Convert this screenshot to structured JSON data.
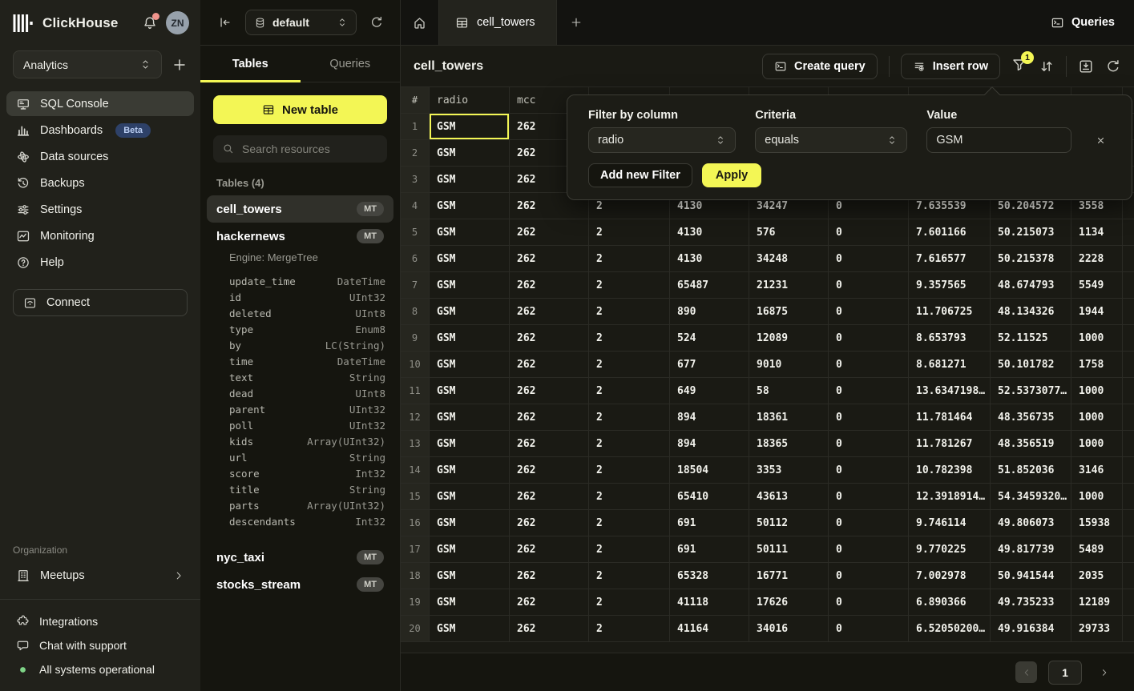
{
  "colors": {
    "accent_yellow": "#f3f655",
    "beta_badge_bg": "#2e4168",
    "beta_badge_text": "#b9cdf2",
    "status_green": "#7ed487",
    "notification_red": "#f0948c",
    "selected_cell_border": "#f3f655"
  },
  "sidebar": {
    "brand": "ClickHouse",
    "avatar_initials": "ZN",
    "workspace_selected": "Analytics",
    "nav": [
      {
        "label": "SQL Console",
        "icon": "console-icon",
        "active": true
      },
      {
        "label": "Dashboards",
        "icon": "dashboards-icon",
        "badge": "Beta"
      },
      {
        "label": "Data sources",
        "icon": "data-sources-icon"
      },
      {
        "label": "Backups",
        "icon": "backups-icon"
      },
      {
        "label": "Settings",
        "icon": "settings-icon"
      },
      {
        "label": "Monitoring",
        "icon": "monitoring-icon"
      },
      {
        "label": "Help",
        "icon": "help-icon"
      }
    ],
    "connect_label": "Connect",
    "organization_label": "Organization",
    "organization_items": [
      {
        "label": "Meetups",
        "icon": "building-icon"
      }
    ],
    "footer_items": [
      {
        "label": "Integrations",
        "icon": "puzzle-icon"
      },
      {
        "label": "Chat with support",
        "icon": "chat-icon"
      },
      {
        "label": "All systems operational",
        "icon": "status-dot"
      }
    ]
  },
  "explorer": {
    "database_selected": "default",
    "tabs": [
      {
        "label": "Tables",
        "active": true
      },
      {
        "label": "Queries",
        "active": false
      }
    ],
    "new_table_label": "New table",
    "search_placeholder": "Search resources",
    "section_label": "Tables (4)",
    "tables": [
      {
        "name": "cell_towers",
        "badge": "MT",
        "selected": true
      },
      {
        "name": "hackernews",
        "badge": "MT",
        "engine_label": "Engine: MergeTree",
        "columns": [
          {
            "name": "update_time",
            "type": "DateTime"
          },
          {
            "name": "id",
            "type": "UInt32"
          },
          {
            "name": "deleted",
            "type": "UInt8"
          },
          {
            "name": "type",
            "type": "Enum8"
          },
          {
            "name": "by",
            "type": "LC(String)"
          },
          {
            "name": "time",
            "type": "DateTime"
          },
          {
            "name": "text",
            "type": "String"
          },
          {
            "name": "dead",
            "type": "UInt8"
          },
          {
            "name": "parent",
            "type": "UInt32"
          },
          {
            "name": "poll",
            "type": "UInt32"
          },
          {
            "name": "kids",
            "type": "Array(UInt32)"
          },
          {
            "name": "url",
            "type": "String"
          },
          {
            "name": "score",
            "type": "Int32"
          },
          {
            "name": "title",
            "type": "String"
          },
          {
            "name": "parts",
            "type": "Array(UInt32)"
          },
          {
            "name": "descendants",
            "type": "Int32"
          }
        ]
      },
      {
        "name": "nyc_taxi",
        "badge": "MT"
      },
      {
        "name": "stocks_stream",
        "badge": "MT"
      }
    ]
  },
  "main": {
    "active_tab": "cell_towers",
    "queries_button_label": "Queries",
    "page_title": "cell_towers",
    "toolbar": {
      "create_query_label": "Create query",
      "insert_row_label": "Insert row",
      "filter_badge_count": "1",
      "icons": [
        "filter-icon",
        "sort-icon",
        "download-icon",
        "refresh-icon"
      ]
    },
    "filter_popup": {
      "column_label": "Filter by column",
      "column_selected": "radio",
      "criteria_label": "Criteria",
      "criteria_selected": "equals",
      "value_label": "Value",
      "value_text": "GSM",
      "add_filter_label": "Add new Filter",
      "apply_label": "Apply"
    },
    "data_grid": {
      "row_number_header": "#",
      "headers": [
        "radio",
        "mcc",
        "",
        "",
        "",
        "",
        "",
        "",
        ""
      ],
      "rows": [
        {
          "n": "1",
          "selected_cell": 0,
          "cells": [
            "GSM",
            "262",
            "",
            "",
            "",
            "",
            "",
            "",
            ""
          ]
        },
        {
          "n": "2",
          "cells": [
            "GSM",
            "262",
            "",
            "",
            "",
            "",
            "",
            "",
            ""
          ]
        },
        {
          "n": "3",
          "cells": [
            "GSM",
            "262",
            "",
            "",
            "",
            "",
            "",
            "",
            ""
          ]
        },
        {
          "n": "4",
          "cells": [
            "GSM",
            "262",
            "2",
            "4130",
            "34247",
            "0",
            "7.635539",
            "50.204572",
            "3558"
          ]
        },
        {
          "n": "5",
          "cells": [
            "GSM",
            "262",
            "2",
            "4130",
            "576",
            "0",
            "7.601166",
            "50.215073",
            "1134"
          ]
        },
        {
          "n": "6",
          "cells": [
            "GSM",
            "262",
            "2",
            "4130",
            "34248",
            "0",
            "7.616577",
            "50.215378",
            "2228"
          ]
        },
        {
          "n": "7",
          "cells": [
            "GSM",
            "262",
            "2",
            "65487",
            "21231",
            "0",
            "9.357565",
            "48.674793",
            "5549"
          ]
        },
        {
          "n": "8",
          "cells": [
            "GSM",
            "262",
            "2",
            "890",
            "16875",
            "0",
            "11.706725",
            "48.134326",
            "1944"
          ]
        },
        {
          "n": "9",
          "cells": [
            "GSM",
            "262",
            "2",
            "524",
            "12089",
            "0",
            "8.653793",
            "52.11525",
            "1000"
          ]
        },
        {
          "n": "10",
          "cells": [
            "GSM",
            "262",
            "2",
            "677",
            "9010",
            "0",
            "8.681271",
            "50.101782",
            "1758"
          ]
        },
        {
          "n": "11",
          "cells": [
            "GSM",
            "262",
            "2",
            "649",
            "58",
            "0",
            "13.6347198…",
            "52.5373077…",
            "1000"
          ]
        },
        {
          "n": "12",
          "cells": [
            "GSM",
            "262",
            "2",
            "894",
            "18361",
            "0",
            "11.781464",
            "48.356735",
            "1000"
          ]
        },
        {
          "n": "13",
          "cells": [
            "GSM",
            "262",
            "2",
            "894",
            "18365",
            "0",
            "11.781267",
            "48.356519",
            "1000"
          ]
        },
        {
          "n": "14",
          "cells": [
            "GSM",
            "262",
            "2",
            "18504",
            "3353",
            "0",
            "10.782398",
            "51.852036",
            "3146"
          ]
        },
        {
          "n": "15",
          "cells": [
            "GSM",
            "262",
            "2",
            "65410",
            "43613",
            "0",
            "12.3918914…",
            "54.3459320…",
            "1000"
          ]
        },
        {
          "n": "16",
          "cells": [
            "GSM",
            "262",
            "2",
            "691",
            "50112",
            "0",
            "9.746114",
            "49.806073",
            "15938"
          ]
        },
        {
          "n": "17",
          "cells": [
            "GSM",
            "262",
            "2",
            "691",
            "50111",
            "0",
            "9.770225",
            "49.817739",
            "5489"
          ]
        },
        {
          "n": "18",
          "cells": [
            "GSM",
            "262",
            "2",
            "65328",
            "16771",
            "0",
            "7.002978",
            "50.941544",
            "2035"
          ]
        },
        {
          "n": "19",
          "cells": [
            "GSM",
            "262",
            "2",
            "41118",
            "17626",
            "0",
            "6.890366",
            "49.735233",
            "12189"
          ]
        },
        {
          "n": "20",
          "cells": [
            "GSM",
            "262",
            "2",
            "41164",
            "34016",
            "0",
            "6.52050200…",
            "49.916384",
            "29733"
          ]
        }
      ]
    },
    "pagination": {
      "current_page": "1"
    }
  }
}
